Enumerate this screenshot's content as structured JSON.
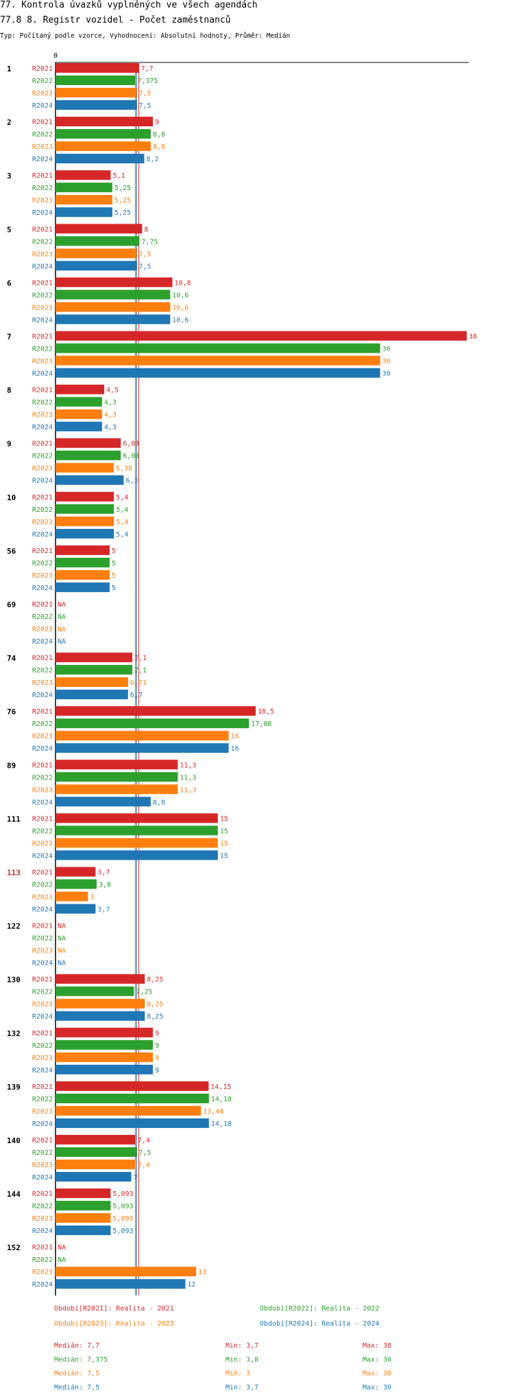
{
  "header": {
    "title": "77. Kontrola úvazků vyplněných ve všech agendách",
    "subtitle": "77.8 8. Registr vozidel - Počet zaměstnanců",
    "info": "Typ: Počítaný podle vzorce, Vyhodnocení: Absolutní hodnoty, Průměr: Medián"
  },
  "colors": {
    "R2021": "#d62728",
    "R2022": "#2ca02c",
    "R2023": "#ff7f0e",
    "R2024": "#1f77b4"
  },
  "chart_data": {
    "type": "bar",
    "orientation": "horizontal",
    "xlim": [
      0,
      38
    ],
    "x_tick_labels": [
      "0"
    ],
    "series_names": [
      "R2021",
      "R2022",
      "R2023",
      "R2024"
    ],
    "highlighted_category": "113",
    "categories": [
      {
        "label": "1",
        "values": [
          7.7,
          7.375,
          7.5,
          7.5
        ],
        "labels": [
          "7,7",
          "7,375",
          "7,5",
          "7,5"
        ]
      },
      {
        "label": "2",
        "values": [
          9,
          8.8,
          8.8,
          8.2
        ],
        "labels": [
          "9",
          "8,8",
          "8,8",
          "8,2"
        ]
      },
      {
        "label": "3",
        "values": [
          5.1,
          5.25,
          5.25,
          5.25
        ],
        "labels": [
          "5,1",
          "5,25",
          "5,25",
          "5,25"
        ]
      },
      {
        "label": "5",
        "values": [
          8,
          7.75,
          7.5,
          7.5
        ],
        "labels": [
          "8",
          "7,75",
          "7,5",
          "7,5"
        ]
      },
      {
        "label": "6",
        "values": [
          10.8,
          10.6,
          10.6,
          10.6
        ],
        "labels": [
          "10,8",
          "10,6",
          "10,6",
          "10,6"
        ]
      },
      {
        "label": "7",
        "values": [
          38,
          30,
          30,
          30
        ],
        "labels": [
          "38",
          "30",
          "30",
          "30"
        ]
      },
      {
        "label": "8",
        "values": [
          4.5,
          4.3,
          4.3,
          4.3
        ],
        "labels": [
          "4,5",
          "4,3",
          "4,3",
          "4,3"
        ]
      },
      {
        "label": "9",
        "values": [
          6.03,
          6.03,
          5.38,
          6.3
        ],
        "labels": [
          "6,03",
          "6,03",
          "5,38",
          "6,3"
        ]
      },
      {
        "label": "10",
        "values": [
          5.4,
          5.4,
          5.4,
          5.4
        ],
        "labels": [
          "5,4",
          "5,4",
          "5,4",
          "5,4"
        ]
      },
      {
        "label": "56",
        "values": [
          5,
          5,
          5,
          5
        ],
        "labels": [
          "5",
          "5",
          "5",
          "5"
        ]
      },
      {
        "label": "69",
        "values": [
          null,
          null,
          null,
          null
        ],
        "labels": [
          "NA",
          "NA",
          "NA",
          "NA"
        ]
      },
      {
        "label": "74",
        "values": [
          7.1,
          7.1,
          6.71,
          6.7
        ],
        "labels": [
          "7,1",
          "7,1",
          "6,71",
          "6,7"
        ]
      },
      {
        "label": "76",
        "values": [
          18.5,
          17.88,
          16,
          16
        ],
        "labels": [
          "18,5",
          "17,88",
          "16",
          "16"
        ]
      },
      {
        "label": "89",
        "values": [
          11.3,
          11.3,
          11.3,
          8.8
        ],
        "labels": [
          "11,3",
          "11,3",
          "11,3",
          "8,8"
        ]
      },
      {
        "label": "111",
        "values": [
          15,
          15,
          15,
          15
        ],
        "labels": [
          "15",
          "15",
          "15",
          "15"
        ]
      },
      {
        "label": "113",
        "values": [
          3.7,
          3.8,
          3,
          3.7
        ],
        "labels": [
          "3,7",
          "3,8",
          "3",
          "3,7"
        ]
      },
      {
        "label": "122",
        "values": [
          null,
          null,
          null,
          null
        ],
        "labels": [
          "NA",
          "NA",
          "NA",
          "NA"
        ]
      },
      {
        "label": "130",
        "values": [
          8.25,
          7.25,
          8.25,
          8.25
        ],
        "labels": [
          "8,25",
          "7,25",
          "8,25",
          "8,25"
        ]
      },
      {
        "label": "132",
        "values": [
          9,
          9,
          9,
          9
        ],
        "labels": [
          "9",
          "9",
          "9",
          "9"
        ]
      },
      {
        "label": "139",
        "values": [
          14.15,
          14.18,
          13.44,
          14.18
        ],
        "labels": [
          "14,15",
          "14,18",
          "13,44",
          "14,18"
        ]
      },
      {
        "label": "140",
        "values": [
          7.4,
          7.5,
          7.4,
          7
        ],
        "labels": [
          "7,4",
          "7,5",
          "7,4",
          "7"
        ]
      },
      {
        "label": "144",
        "values": [
          5.093,
          5.093,
          5.093,
          5.093
        ],
        "labels": [
          "5,093",
          "5,093",
          "5,093",
          "5,093"
        ]
      },
      {
        "label": "152",
        "values": [
          null,
          null,
          13,
          12
        ],
        "labels": [
          "NA",
          "NA",
          "13",
          "12"
        ]
      }
    ],
    "median_lines": [
      7.7,
      7.375,
      7.5,
      7.5
    ],
    "legend": [
      {
        "series": "R2021",
        "text": "Období[R2021]: Realita - 2021"
      },
      {
        "series": "R2022",
        "text": "Období[R2022]: Realita - 2022"
      },
      {
        "series": "R2023",
        "text": "Období[R2023]: Realita - 2023"
      },
      {
        "series": "R2024",
        "text": "Období[R2024]: Realita - 2024"
      }
    ],
    "stats": [
      {
        "series": "R2021",
        "median": "Medián: 7,7",
        "min": "Min: 3,7",
        "max": "Max: 38"
      },
      {
        "series": "R2022",
        "median": "Medián: 7,375",
        "min": "Min: 3,8",
        "max": "Max: 30"
      },
      {
        "series": "R2023",
        "median": "Medián: 7,5",
        "min": "Min: 3",
        "max": "Max: 30"
      },
      {
        "series": "R2024",
        "median": "Medián: 7,5",
        "min": "Min: 3,7",
        "max": "Max: 30"
      }
    ]
  }
}
